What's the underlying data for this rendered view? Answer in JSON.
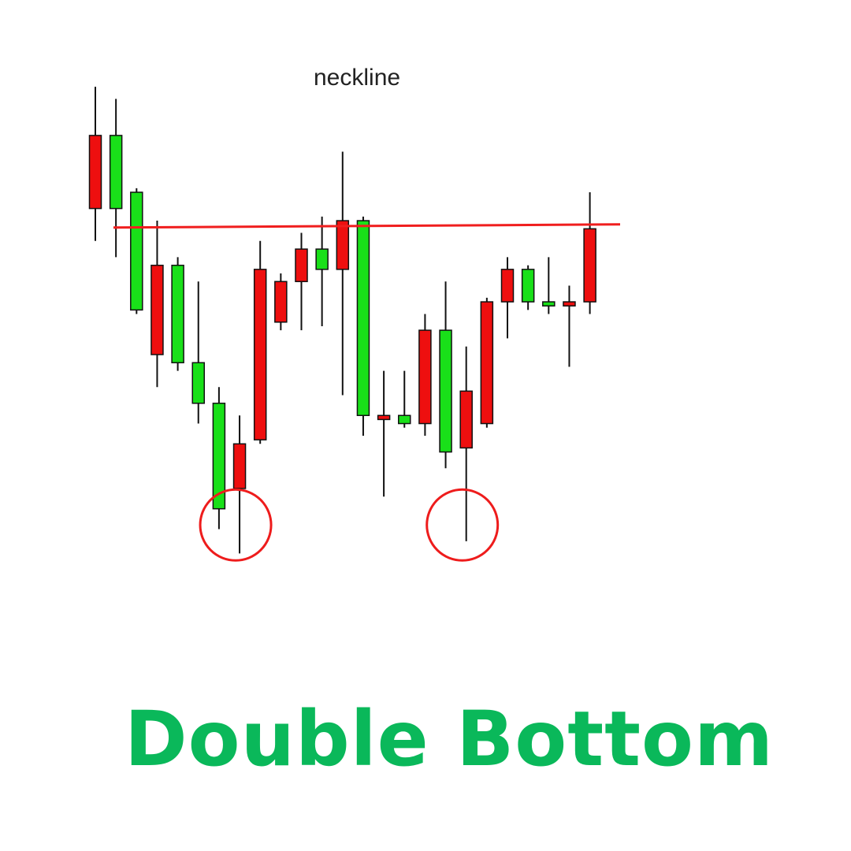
{
  "title": "Double Bottom",
  "colors": {
    "title": "#0ab85a",
    "up": "#19e019",
    "down": "#ee0f0f",
    "neckline": "#f01e1e",
    "circle": "#ee1c1c",
    "wick": "#111111"
  },
  "chart_data": {
    "type": "candlestick",
    "annotation": "neckline",
    "neckline_level": 91.5,
    "bottom_markers": [
      {
        "candle": 7,
        "level": 18
      },
      {
        "candle": 18,
        "level": 18
      }
    ],
    "candles": [
      {
        "dir": "down",
        "open": 114,
        "close": 96,
        "high": 126,
        "low": 88
      },
      {
        "dir": "up",
        "open": 96,
        "close": 114,
        "high": 123,
        "low": 84
      },
      {
        "dir": "up",
        "open": 71,
        "close": 100,
        "high": 101,
        "low": 70
      },
      {
        "dir": "down",
        "open": 82,
        "close": 60,
        "high": 93,
        "low": 52
      },
      {
        "dir": "up",
        "open": 58,
        "close": 82,
        "high": 84,
        "low": 56
      },
      {
        "dir": "up",
        "open": 48,
        "close": 58,
        "high": 78,
        "low": 43
      },
      {
        "dir": "up",
        "open": 22,
        "close": 48,
        "high": 52,
        "low": 17
      },
      {
        "dir": "down",
        "open": 38,
        "close": 27,
        "high": 45,
        "low": 11
      },
      {
        "dir": "down",
        "open": 81,
        "close": 39,
        "high": 88,
        "low": 38
      },
      {
        "dir": "down",
        "open": 78,
        "close": 68,
        "high": 80,
        "low": 66
      },
      {
        "dir": "down",
        "open": 86,
        "close": 78,
        "high": 90,
        "low": 66
      },
      {
        "dir": "up",
        "open": 81,
        "close": 86,
        "high": 94,
        "low": 67
      },
      {
        "dir": "down",
        "open": 93,
        "close": 81,
        "high": 110,
        "low": 50
      },
      {
        "dir": "up",
        "open": 45,
        "close": 93,
        "high": 94,
        "low": 40
      },
      {
        "dir": "down",
        "open": 45,
        "close": 44,
        "high": 56,
        "low": 25
      },
      {
        "dir": "up",
        "open": 43,
        "close": 45,
        "high": 56,
        "low": 42
      },
      {
        "dir": "down",
        "open": 66,
        "close": 43,
        "high": 70,
        "low": 40
      },
      {
        "dir": "up",
        "open": 36,
        "close": 66,
        "high": 78,
        "low": 32
      },
      {
        "dir": "down",
        "open": 51,
        "close": 37,
        "high": 62,
        "low": 14
      },
      {
        "dir": "down",
        "open": 73,
        "close": 43,
        "high": 74,
        "low": 42
      },
      {
        "dir": "down",
        "open": 81,
        "close": 73,
        "high": 84,
        "low": 64
      },
      {
        "dir": "up",
        "open": 73,
        "close": 81,
        "high": 82,
        "low": 71
      },
      {
        "dir": "up",
        "open": 72,
        "close": 73,
        "high": 84,
        "low": 70
      },
      {
        "dir": "down",
        "open": 73,
        "close": 72,
        "high": 77,
        "low": 57
      },
      {
        "dir": "down",
        "open": 91,
        "close": 73,
        "high": 100,
        "low": 70
      }
    ]
  }
}
